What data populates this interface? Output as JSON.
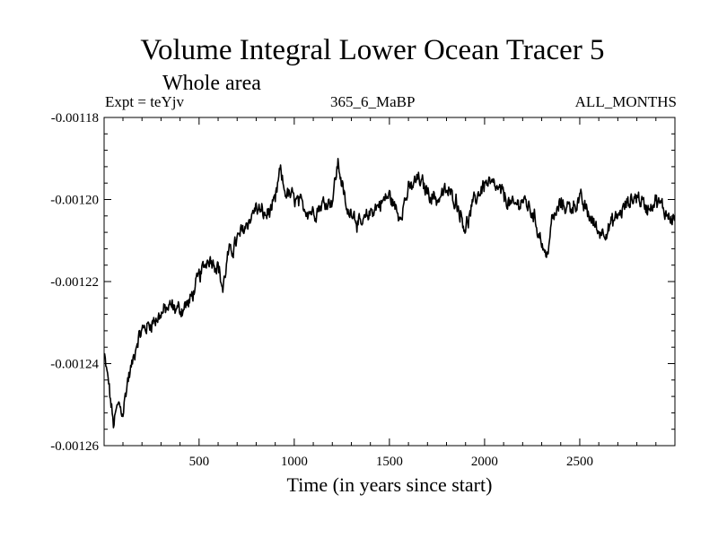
{
  "chart_data": {
    "type": "line",
    "title": "Volume Integral Lower Ocean Tracer 5",
    "subtitle": "Whole area",
    "experiment": "Expt = teYjv",
    "run_label": "365_6_MaBP",
    "period_label": "ALL_MONTHS",
    "xlabel": "Time (in years since start)",
    "ylabel": "",
    "xlim": [
      1,
      3000
    ],
    "ylim": [
      -0.00126,
      -0.00118
    ],
    "xticks": [
      500,
      1000,
      1500,
      2000,
      2500
    ],
    "xtick_labels": [
      "500",
      "1000",
      "1500",
      "2000",
      "2500"
    ],
    "yticks": [
      -0.00118,
      -0.0012,
      -0.00122,
      -0.00124,
      -0.00126
    ],
    "ytick_labels": [
      "-0.00118",
      "-0.00120",
      "-0.00122",
      "-0.00124",
      "-0.00126"
    ],
    "series": [
      {
        "name": "Volume Integral Lower Ocean Tracer 5",
        "color": "#000000",
        "x": [
          1,
          25,
          50,
          75,
          100,
          125,
          150,
          175,
          200,
          250,
          300,
          350,
          400,
          450,
          500,
          550,
          600,
          625,
          650,
          700,
          750,
          800,
          850,
          900,
          925,
          950,
          1000,
          1050,
          1100,
          1150,
          1200,
          1230,
          1250,
          1280,
          1300,
          1350,
          1400,
          1450,
          1500,
          1550,
          1600,
          1650,
          1700,
          1750,
          1800,
          1850,
          1900,
          1950,
          2000,
          2050,
          2100,
          2150,
          2200,
          2250,
          2300,
          2325,
          2350,
          2400,
          2450,
          2500,
          2550,
          2600,
          2650,
          2700,
          2750,
          2800,
          2850,
          2900,
          2950,
          3000
        ],
        "values": [
          -0.001238,
          -0.001245,
          -0.001255,
          -0.00125,
          -0.001252,
          -0.001244,
          -0.00124,
          -0.001234,
          -0.001232,
          -0.00123,
          -0.001228,
          -0.001226,
          -0.001227,
          -0.001225,
          -0.001219,
          -0.001214,
          -0.001216,
          -0.001222,
          -0.001214,
          -0.00121,
          -0.001206,
          -0.001202,
          -0.001204,
          -0.001201,
          -0.001193,
          -0.001198,
          -0.0012,
          -0.001202,
          -0.001203,
          -0.001201,
          -0.0012,
          -0.001191,
          -0.001196,
          -0.001204,
          -0.001202,
          -0.001207,
          -0.001203,
          -0.001201,
          -0.001199,
          -0.001204,
          -0.001198,
          -0.001195,
          -0.001198,
          -0.0012,
          -0.001198,
          -0.0012,
          -0.001207,
          -0.0012,
          -0.001196,
          -0.001197,
          -0.001199,
          -0.001202,
          -0.0012,
          -0.001203,
          -0.00121,
          -0.001215,
          -0.001206,
          -0.001201,
          -0.001202,
          -0.0012,
          -0.001204,
          -0.001208,
          -0.001207,
          -0.001204,
          -0.001201,
          -0.001199,
          -0.001202,
          -0.0012,
          -0.001203,
          -0.001205
        ]
      }
    ]
  }
}
